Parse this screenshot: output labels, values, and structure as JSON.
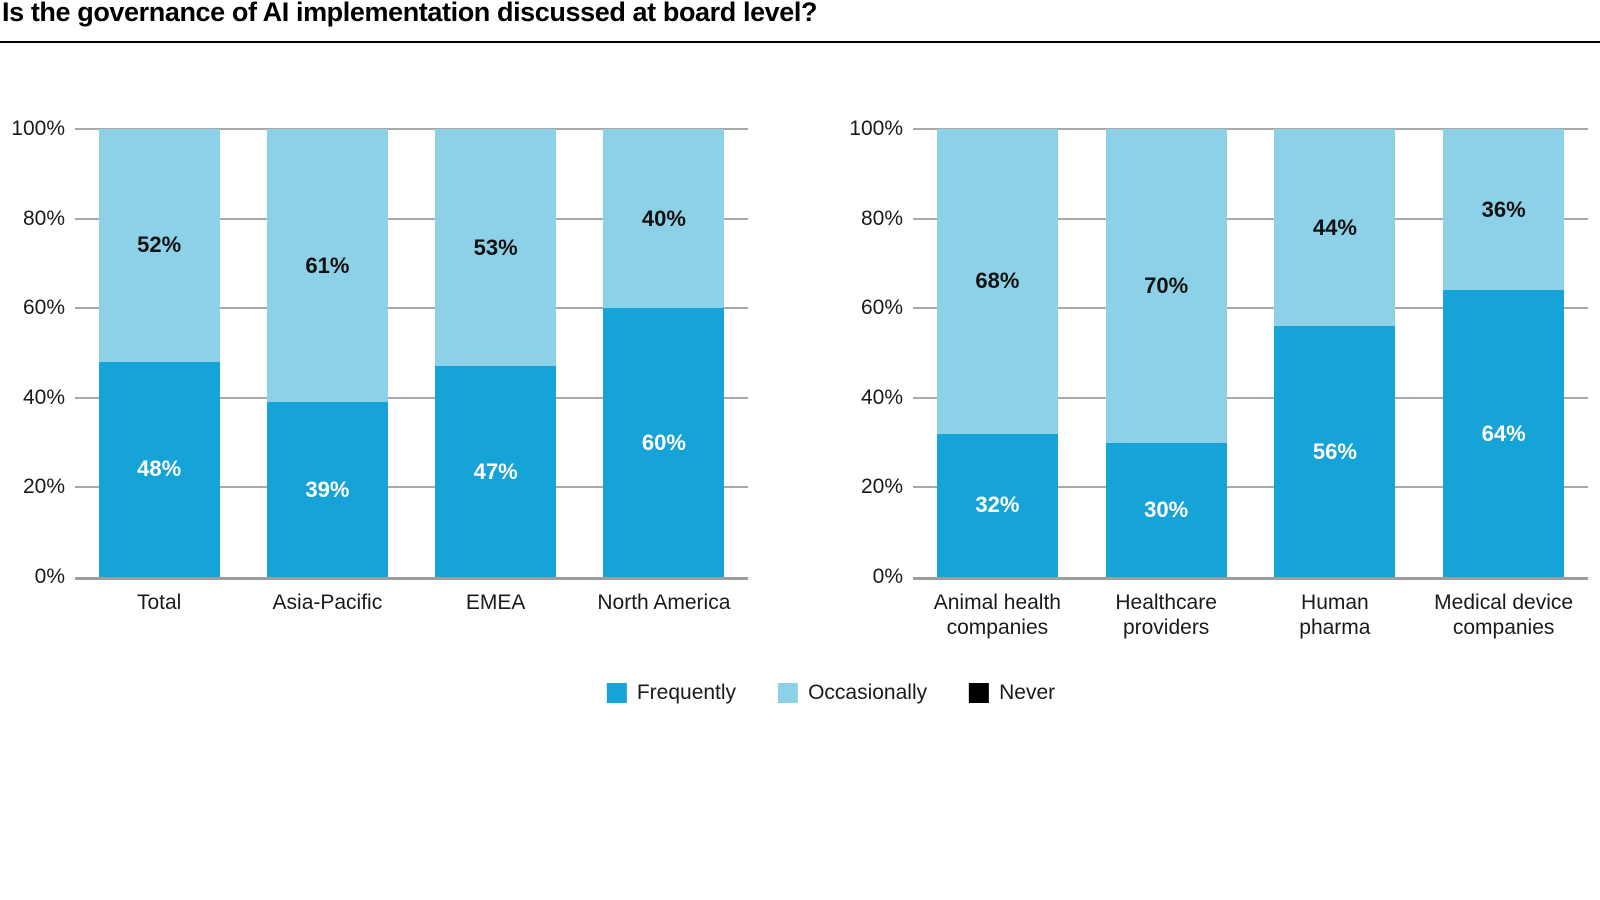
{
  "page": {
    "title": "Is the governance of AI implementation discussed at board level?"
  },
  "colors": {
    "frequently": "#16A3D8",
    "occasionally": "#8CD1E7",
    "never": "#000000",
    "gridline": "#A8A8A8"
  },
  "legend": {
    "items": [
      {
        "label": "Frequently",
        "color": "#16A3D8"
      },
      {
        "label": "Occasionally",
        "color": "#8CD1E7"
      },
      {
        "label": "Never",
        "color": "#000000"
      }
    ]
  },
  "chart_data": [
    {
      "type": "bar",
      "stacked": true,
      "panel": "left",
      "title": "",
      "categories": [
        "Total",
        "Asia-Pacific",
        "EMEA",
        "North America"
      ],
      "series": [
        {
          "name": "Frequently",
          "color": "#16A3D8",
          "values": [
            48,
            39,
            47,
            60
          ]
        },
        {
          "name": "Occasionally",
          "color": "#8CD1E7",
          "values": [
            52,
            61,
            53,
            40
          ]
        },
        {
          "name": "Never",
          "color": "#000000",
          "values": [
            0,
            0,
            0,
            0
          ]
        }
      ],
      "xlabel": "",
      "ylabel": "",
      "ylim": [
        0,
        100
      ],
      "yticks": [
        "0%",
        "20%",
        "40%",
        "60%",
        "80%",
        "100%"
      ],
      "grid": true,
      "legend_position": "bottom-center",
      "value_label_suffix": "%"
    },
    {
      "type": "bar",
      "stacked": true,
      "panel": "right",
      "title": "",
      "categories": [
        "Animal health\ncompanies",
        "Healthcare\nproviders",
        "Human\npharma",
        "Medical device\ncompanies"
      ],
      "series": [
        {
          "name": "Frequently",
          "color": "#16A3D8",
          "values": [
            32,
            30,
            56,
            64
          ]
        },
        {
          "name": "Occasionally",
          "color": "#8CD1E7",
          "values": [
            68,
            70,
            44,
            36
          ]
        },
        {
          "name": "Never",
          "color": "#000000",
          "values": [
            0,
            0,
            0,
            0
          ]
        }
      ],
      "xlabel": "",
      "ylabel": "",
      "ylim": [
        0,
        100
      ],
      "yticks": [
        "0%",
        "20%",
        "40%",
        "60%",
        "80%",
        "100%"
      ],
      "grid": true,
      "legend_position": "bottom-center",
      "value_label_suffix": "%"
    }
  ]
}
